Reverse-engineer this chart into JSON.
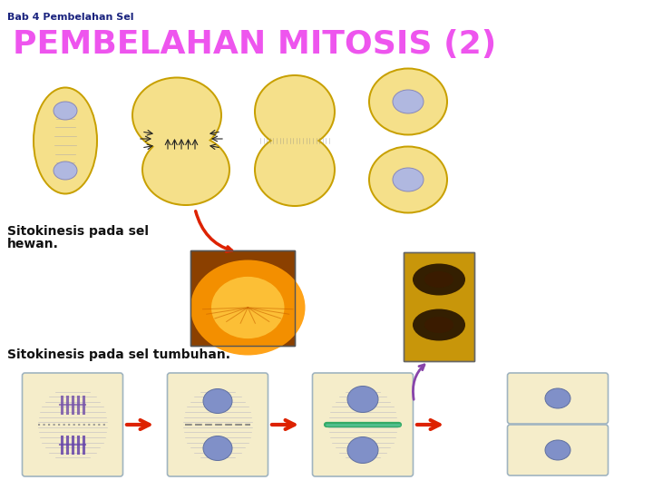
{
  "background_color": "#ffffff",
  "title_small": "Bab 4 Pembelahan Sel",
  "title_small_color": "#1a237e",
  "title_small_fontsize": 8,
  "title_main": "PEMBELAHAN MITOSIS (2)",
  "title_main_color": "#ee55ee",
  "title_main_fontsize": 26,
  "label1_line1": "Sitokinesis pada sel",
  "label1_line2": "hewan.",
  "label2": "Sitokinesis pada sel tumbuhan.",
  "label_color": "#111111",
  "label_fontsize": 10,
  "cell_color_animal": "#f5e08a",
  "cell_color_animal_inner": "#f0d060",
  "cell_color_animal_edge": "#c8a000",
  "nucleus_color_animal": "#b0b8e0",
  "nucleus_edge_animal": "#8888bb",
  "cell_color_plant": "#f5edca",
  "cell_border_plant": "#a0b4c0",
  "nucleus_color_plant": "#8090c8",
  "nucleus_edge_plant": "#6070a0",
  "arrow_red": "#dd2200",
  "arrow_purple": "#8844aa",
  "spindle_color": "#9090bb",
  "chrom_color1": "#6060aa",
  "plate_color": "#44aa44"
}
